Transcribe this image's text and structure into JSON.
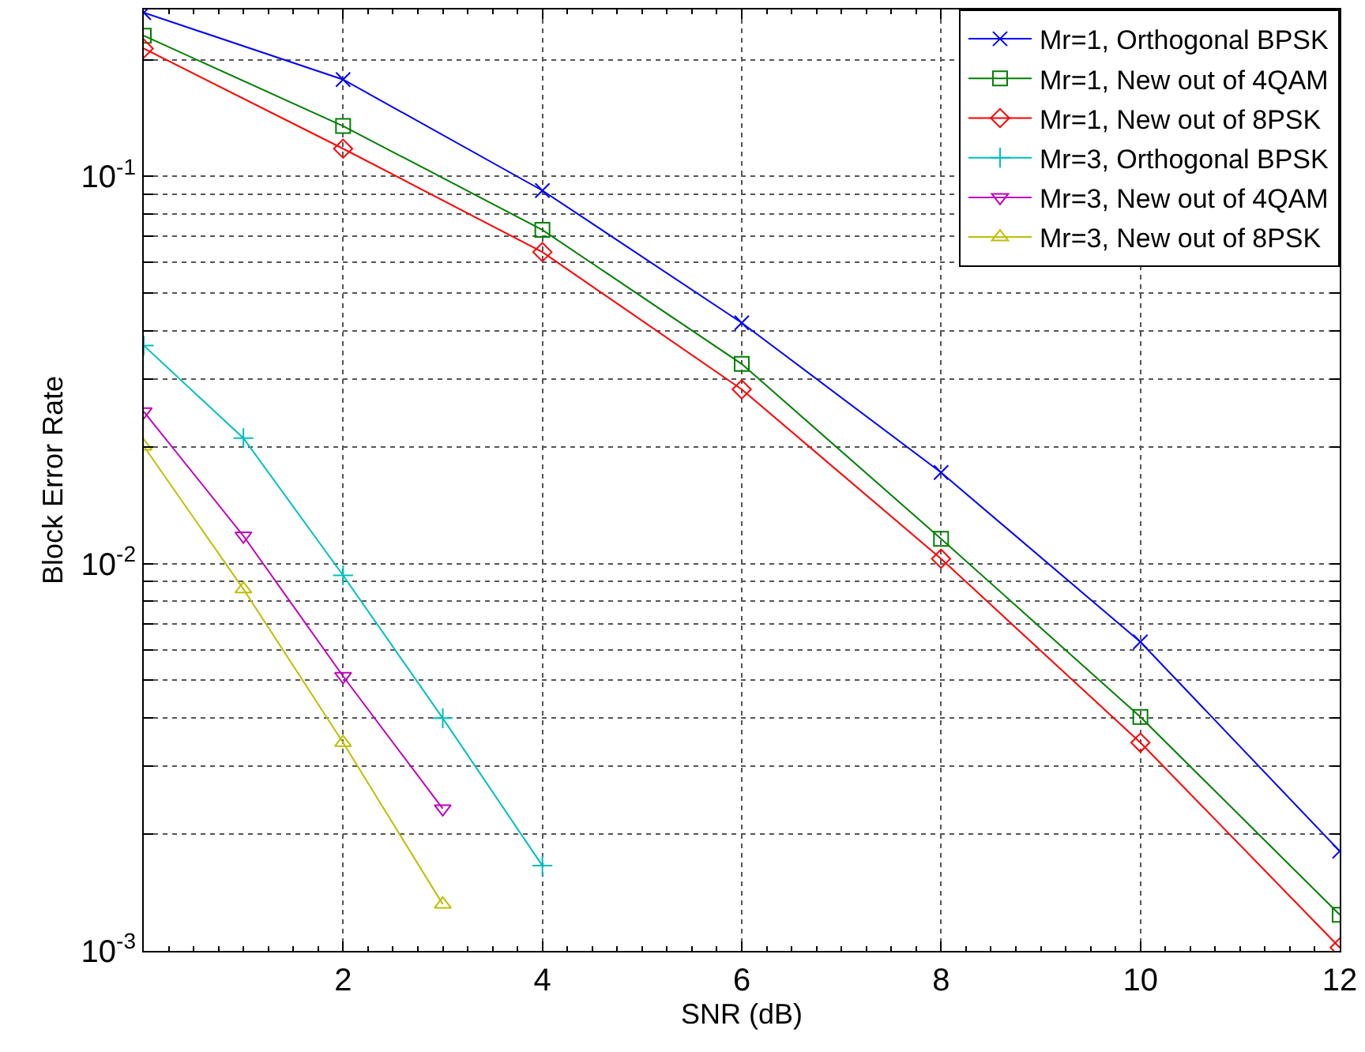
{
  "chart_data": {
    "type": "line",
    "xlabel": "SNR (dB)",
    "ylabel": "Block Error Rate",
    "log": "y",
    "grid": true,
    "legend": "top right",
    "xlim": [
      0,
      12
    ],
    "xticks": [
      2,
      4,
      6,
      8,
      10,
      12
    ],
    "ylim": [
      0.001,
      0.27
    ],
    "yticks": [
      {
        "value": 0.001,
        "label": "10$^{-3}$"
      },
      {
        "value": 0.002,
        "label": null
      },
      {
        "value": 0.003,
        "label": null
      },
      {
        "value": 0.004,
        "label": null
      },
      {
        "value": 0.005,
        "label": null
      },
      {
        "value": 0.006,
        "label": null
      },
      {
        "value": 0.007,
        "label": null
      },
      {
        "value": 0.008,
        "label": null
      },
      {
        "value": 0.009,
        "label": null
      },
      {
        "value": 0.01,
        "label": "10$^{-2}$"
      },
      {
        "value": 0.02,
        "label": null
      },
      {
        "value": 0.03,
        "label": null
      },
      {
        "value": 0.04,
        "label": null
      },
      {
        "value": 0.05,
        "label": null
      },
      {
        "value": 0.06,
        "label": null
      },
      {
        "value": 0.07,
        "label": null
      },
      {
        "value": 0.08,
        "label": null
      },
      {
        "value": 0.09,
        "label": null
      },
      {
        "value": 0.1,
        "label": "10$^{-1}$"
      },
      {
        "value": 0.2,
        "label": null
      }
    ],
    "series": [
      {
        "name": "Mr=1, Orthogonal BPSK",
        "color": "#0000ff",
        "marker": "cross",
        "x": [
          0,
          2,
          4,
          6,
          8,
          10,
          12
        ],
        "values": [
          0.265,
          0.178,
          0.092,
          0.0419,
          0.0172,
          0.00628,
          0.00181
        ]
      },
      {
        "name": "Mr=1, New out of 4QAM",
        "color": "#008000",
        "marker": "square",
        "x": [
          0,
          2,
          4,
          6,
          8,
          10,
          12
        ],
        "values": [
          0.231,
          0.135,
          0.0728,
          0.0328,
          0.0116,
          0.00402,
          0.00124
        ]
      },
      {
        "name": "Mr=1, New out of 8PSK",
        "color": "#ff0000",
        "marker": "diamond",
        "x": [
          0,
          2,
          4,
          6,
          8,
          10,
          12
        ],
        "values": [
          0.214,
          0.118,
          0.0638,
          0.0282,
          0.0103,
          0.00345,
          0.00102
        ]
      },
      {
        "name": "Mr=3, Orthogonal BPSK",
        "color": "#00bfbf",
        "marker": "plus",
        "x": [
          0,
          1,
          2,
          3,
          4
        ],
        "values": [
          0.0366,
          0.0211,
          0.00933,
          0.00399,
          0.00166
        ]
      },
      {
        "name": "Mr=3, New out of 4QAM",
        "color": "#bf00bf",
        "marker": "triangle-down",
        "x": [
          0,
          1,
          2,
          3
        ],
        "values": [
          0.0247,
          0.0118,
          0.00512,
          0.00233
        ]
      },
      {
        "name": "Mr=3, New out of 8PSK",
        "color": "#bfbf00",
        "marker": "triangle",
        "x": [
          0,
          1,
          2,
          3
        ],
        "values": [
          0.0201,
          0.0086,
          0.00345,
          0.00132
        ]
      }
    ]
  }
}
